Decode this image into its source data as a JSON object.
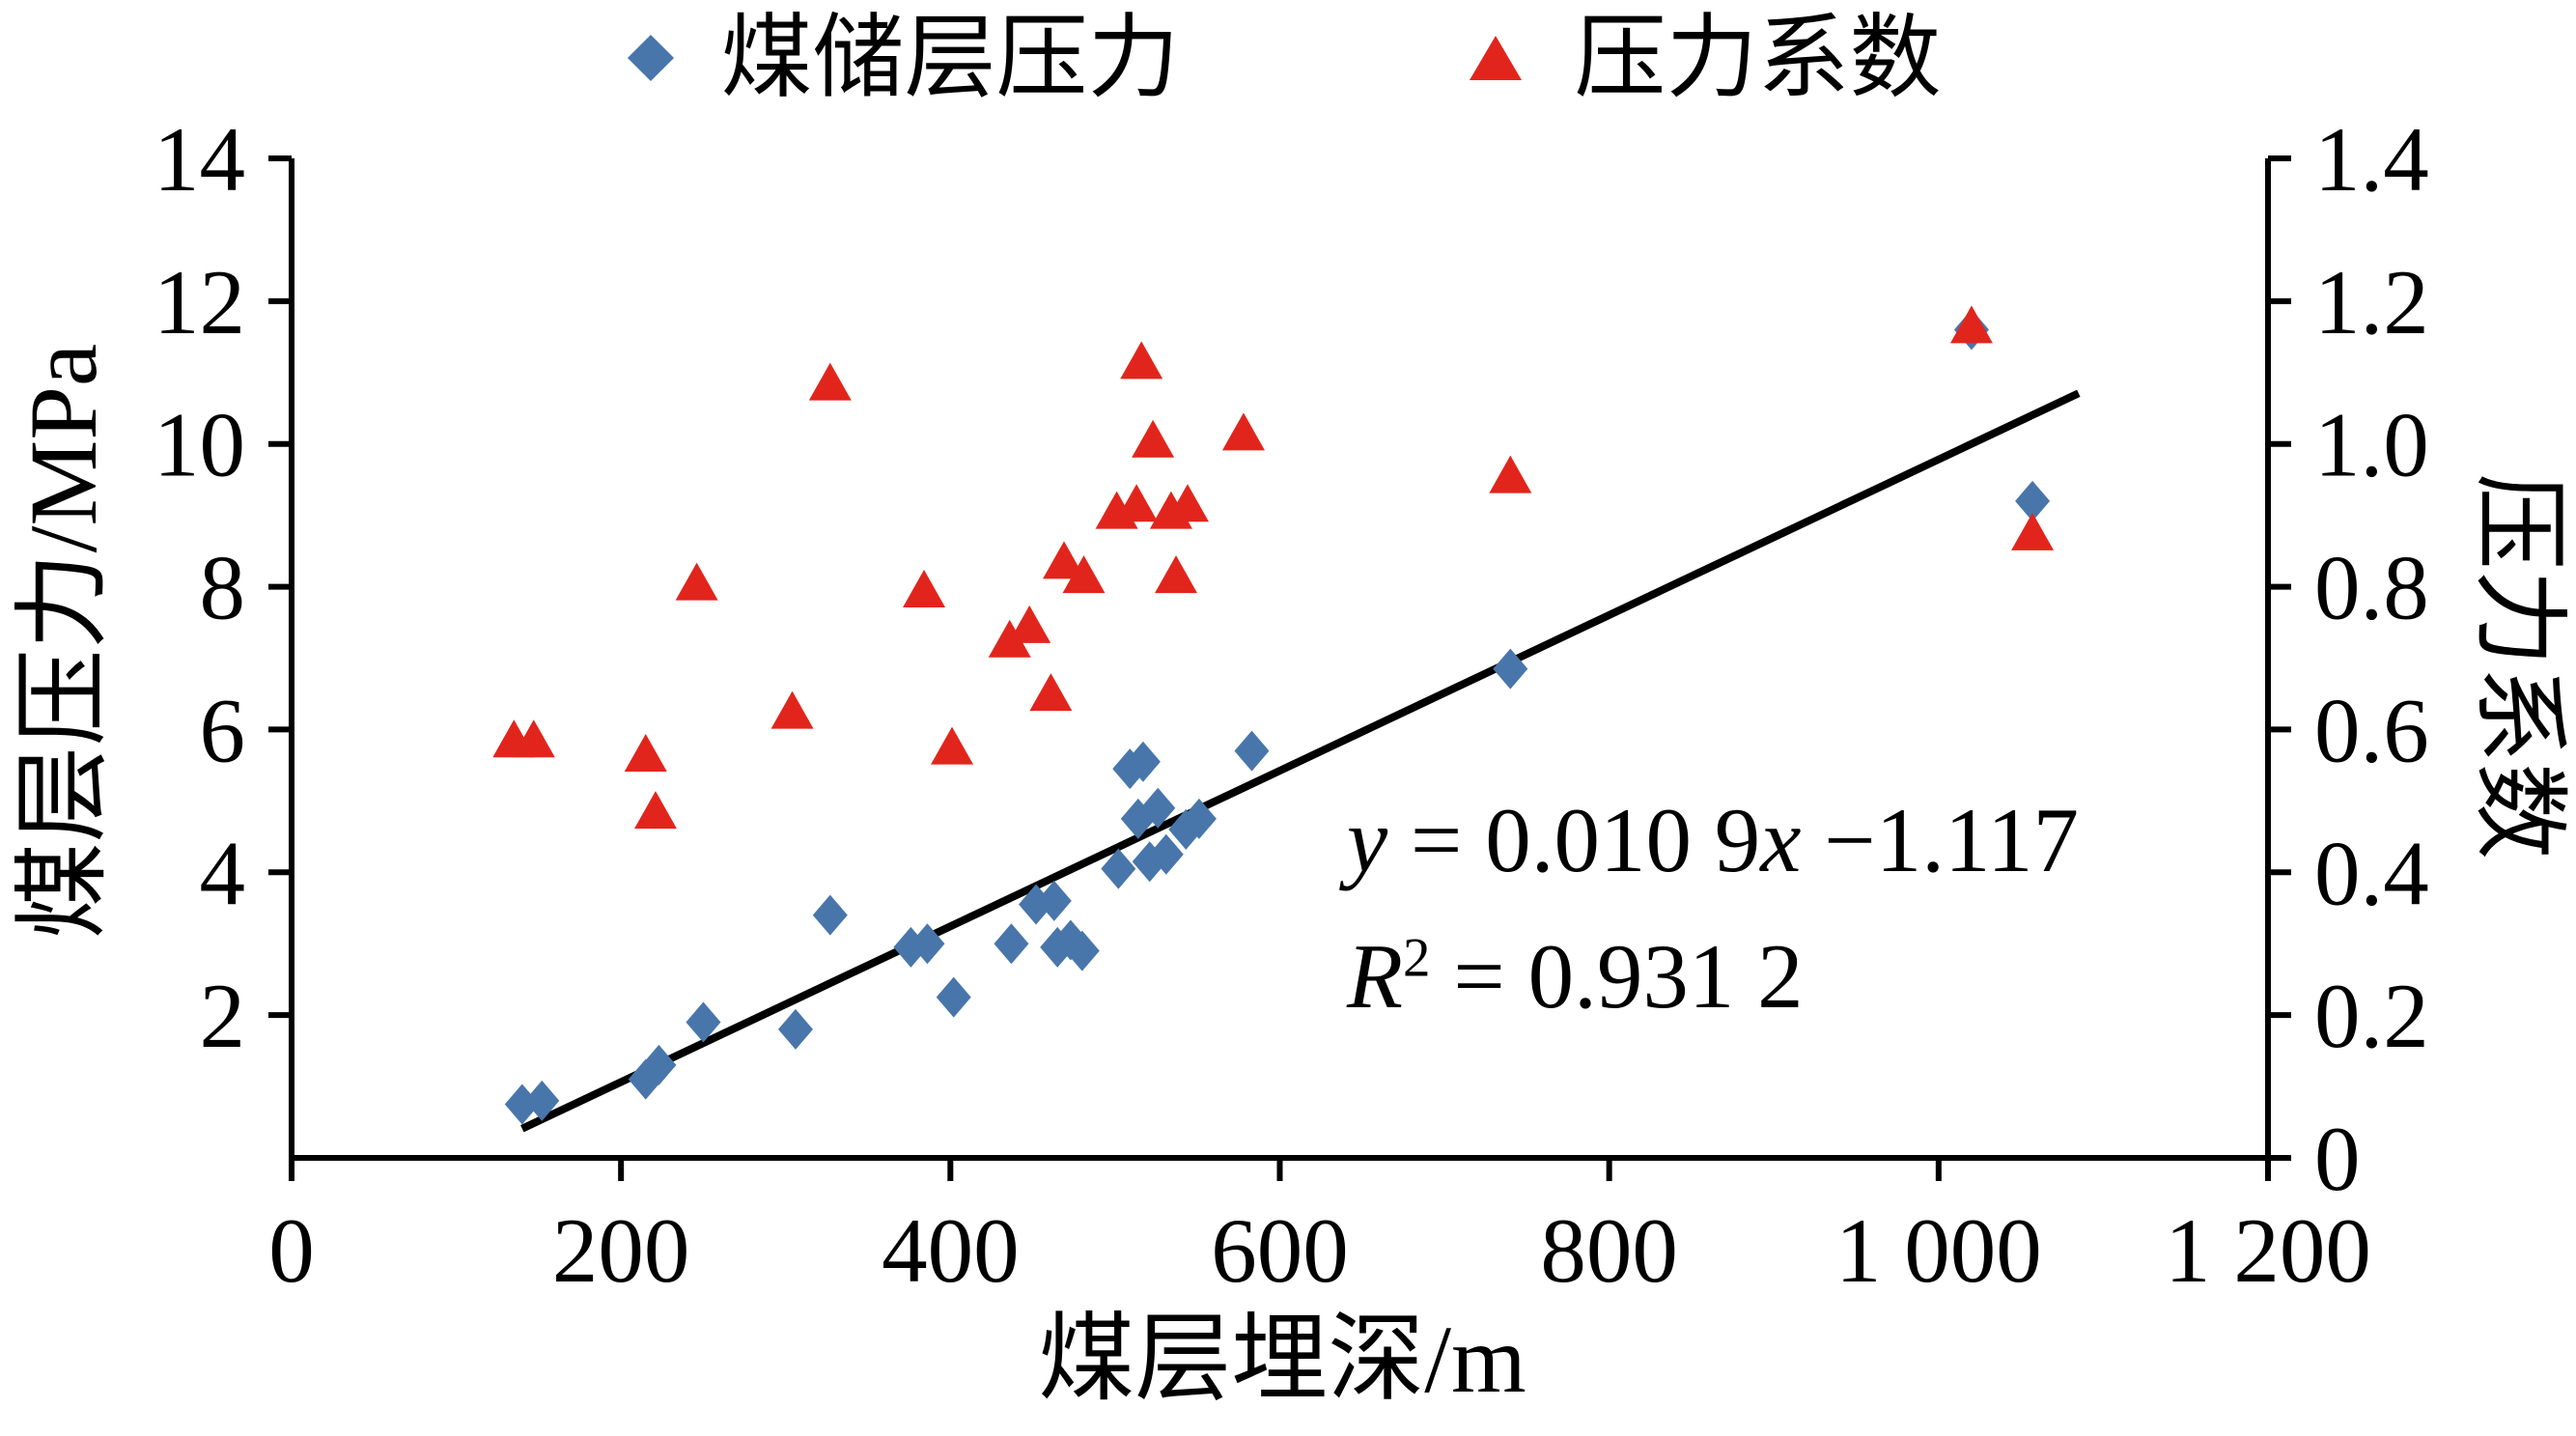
{
  "figure": {
    "background": "#ffffff"
  },
  "chart_data": {
    "type": "scatter",
    "title": "",
    "xlabel": "煤层埋深/m",
    "ylabel_left": "煤层压力/MPa",
    "ylabel_right": "压力系数",
    "xlim": [
      0,
      1200
    ],
    "ylim_left": [
      0,
      14
    ],
    "ylim_right": [
      0,
      1.4
    ],
    "grid": false,
    "legend_position": "top-center",
    "x_ticks": [
      0,
      200,
      400,
      600,
      800,
      1000,
      1200
    ],
    "x_tick_labels": [
      "0",
      "200",
      "400",
      "600",
      "800",
      "1 000",
      "1 200"
    ],
    "y_ticks_left": [
      2,
      4,
      6,
      8,
      10,
      12,
      14
    ],
    "y_tick_labels_left": [
      "2",
      "4",
      "6",
      "8",
      "10",
      "12",
      "14"
    ],
    "y_ticks_right": [
      0,
      0.2,
      0.4,
      0.6,
      0.8,
      1.0,
      1.2,
      1.4
    ],
    "y_tick_labels_right": [
      "0",
      "0.2",
      "0.4",
      "0.6",
      "0.8",
      "1.0",
      "1.2",
      "1.4"
    ],
    "series": [
      {
        "name": "煤储层压力",
        "marker": "diamond",
        "color": "#4876ab",
        "axis": "left",
        "points": [
          [
            140,
            0.75
          ],
          [
            152,
            0.8
          ],
          [
            215,
            1.1
          ],
          [
            223,
            1.3
          ],
          [
            250,
            1.9
          ],
          [
            306,
            1.8
          ],
          [
            327,
            3.4
          ],
          [
            376,
            2.95
          ],
          [
            386,
            3.0
          ],
          [
            402,
            2.25
          ],
          [
            437,
            3.0
          ],
          [
            452,
            3.55
          ],
          [
            463,
            3.6
          ],
          [
            465,
            2.95
          ],
          [
            473,
            3.05
          ],
          [
            480,
            2.9
          ],
          [
            502,
            4.05
          ],
          [
            509,
            5.45
          ],
          [
            517,
            5.55
          ],
          [
            514,
            4.75
          ],
          [
            526,
            4.9
          ],
          [
            521,
            4.15
          ],
          [
            531,
            4.25
          ],
          [
            543,
            4.6
          ],
          [
            551,
            4.75
          ],
          [
            583,
            5.7
          ],
          [
            740,
            6.85
          ],
          [
            1020,
            11.6
          ],
          [
            1057,
            9.2
          ]
        ]
      },
      {
        "name": "压力系数",
        "marker": "triangle",
        "color": "#e2251c",
        "axis": "right",
        "points": [
          [
            135,
            0.58
          ],
          [
            147,
            0.58
          ],
          [
            215,
            0.56
          ],
          [
            221,
            0.48
          ],
          [
            246,
            0.8
          ],
          [
            304,
            0.62
          ],
          [
            327,
            1.08
          ],
          [
            384,
            0.79
          ],
          [
            401,
            0.57
          ],
          [
            436,
            0.72
          ],
          [
            448,
            0.74
          ],
          [
            461,
            0.645
          ],
          [
            469,
            0.83
          ],
          [
            481,
            0.81
          ],
          [
            501,
            0.9
          ],
          [
            513,
            0.91
          ],
          [
            516,
            1.11
          ],
          [
            523,
            1.0
          ],
          [
            534,
            0.9
          ],
          [
            544,
            0.91
          ],
          [
            537,
            0.81
          ],
          [
            578,
            1.01
          ],
          [
            740,
            0.95
          ],
          [
            1020,
            1.16
          ],
          [
            1057,
            0.87
          ]
        ]
      }
    ],
    "trendline": {
      "slope": 0.0109,
      "intercept": -1.117,
      "x_start": 140,
      "x_end": 1085,
      "color": "#000000",
      "equation_text": "y = 0.010 9x −1.117",
      "r_squared_text": "R² = 0.931 2"
    },
    "annotation": {
      "line1_parts": [
        [
          "y",
          "i"
        ],
        [
          " = 0.010 9",
          ""
        ],
        [
          "x",
          "i"
        ],
        [
          " −1.117",
          ""
        ]
      ],
      "line2_parts": [
        [
          "R",
          "i"
        ],
        [
          "2",
          "sup"
        ],
        [
          " = 0.931 2",
          ""
        ]
      ]
    }
  }
}
